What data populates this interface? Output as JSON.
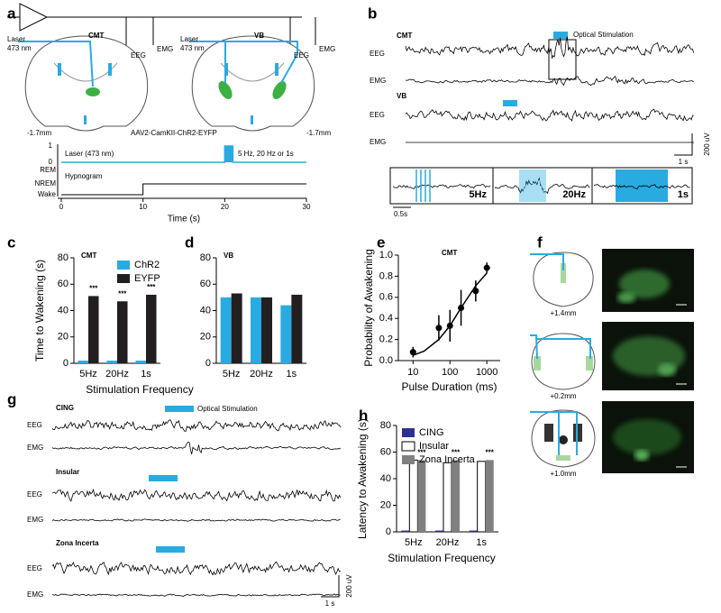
{
  "panel_labels": [
    "a",
    "b",
    "c",
    "d",
    "e",
    "f",
    "g",
    "h"
  ],
  "a": {
    "laser": "Laser",
    "wavelength": "473 nm",
    "laser_2": "Laser",
    "wavelength_2": "473 nm",
    "region_1": "CMT",
    "region_2": "VB",
    "eeg": "EEG",
    "emg": "EMG",
    "eeg_2": "EEG",
    "emg_2": "EMG",
    "depth_1": "-1.7mm",
    "depth_2": "-1.7mm",
    "virus": "AAV2-CamKII-ChR2-EYFP",
    "laser_levels": [
      1,
      0
    ],
    "laser_label": "Laser (473 nm)",
    "stim_label": "5 Hz, 20 Hz or 1s",
    "states": [
      "REM",
      "NREM",
      "Wake"
    ],
    "hypnogram_label": "Hypnogram",
    "time_ticks": [
      0,
      10,
      20,
      30
    ],
    "time_label": "Time (s)"
  },
  "b": {
    "region_1": "CMT",
    "stim_label": "Optical Stimulation",
    "eeg": "EEG",
    "emg": "EMG",
    "region_2": "VB",
    "eeg_2": "EEG",
    "emg_2": "EMG",
    "scale_v": "200 uV",
    "scale_t": "1 s",
    "inset": [
      "5Hz",
      "20Hz",
      "1s"
    ],
    "inset_scale": "0.5s"
  },
  "f": {
    "levels": [
      "+1.4mm",
      "+0.2mm",
      "+1.0mm"
    ]
  },
  "g": {
    "regions": [
      "CING",
      "Insular",
      "Zona Incerta"
    ],
    "stim_label": "Optical Stimulation",
    "eeg": [
      "EEG",
      "EEG",
      "EEG"
    ],
    "emg": [
      "EMG",
      "EMG",
      "EMG"
    ],
    "scale_v": "200 uV",
    "scale_t": "1 s"
  },
  "chart_data": [
    {
      "type": "bar",
      "title": "CMT",
      "ylabel": "Time to Wakening (s)",
      "xlabel": "Stimulation Frequency",
      "categories": [
        "5Hz",
        "20Hz",
        "1s"
      ],
      "series": [
        {
          "name": "ChR2",
          "color": "#29abe2",
          "values": [
            2,
            2,
            2
          ]
        },
        {
          "name": "EYFP",
          "color": "#231f20",
          "values": [
            51,
            47,
            52
          ]
        }
      ],
      "ylim": [
        0,
        80
      ],
      "yticks": [
        0,
        20,
        40,
        60,
        80
      ],
      "annotations": [
        "***",
        "***",
        "***"
      ],
      "legend": "upper right"
    },
    {
      "type": "bar",
      "title": "VB",
      "categories": [
        "5Hz",
        "20Hz",
        "1s"
      ],
      "series": [
        {
          "color": "#29abe2",
          "values": [
            50,
            50,
            44
          ]
        },
        {
          "color": "#231f20",
          "values": [
            53,
            50,
            52
          ]
        }
      ],
      "ylim": [
        0,
        80
      ],
      "yticks": [
        0,
        20,
        40,
        60,
        80
      ]
    },
    {
      "type": "line",
      "title": "CMT",
      "xlabel": "Pulse Duration (ms)",
      "ylabel": "Probability of Awakening",
      "x": [
        10,
        50,
        100,
        200,
        500,
        1000
      ],
      "values": [
        0.08,
        0.31,
        0.33,
        0.5,
        0.66,
        0.88
      ],
      "errors": [
        0.05,
        0.12,
        0.15,
        0.17,
        0.1,
        0.05
      ],
      "fit_x": [
        10,
        20,
        50,
        100,
        200,
        500,
        1000
      ],
      "fit_values": [
        0.05,
        0.09,
        0.2,
        0.33,
        0.5,
        0.71,
        0.83
      ],
      "color": "#000000",
      "xscale": "log",
      "xlim": [
        4,
        2300
      ],
      "xticks": [
        10,
        100,
        1000
      ],
      "ylim": [
        0,
        1
      ],
      "yticks": [
        {
          "value": 0,
          "label": "0.0"
        },
        0.2,
        0.4,
        0.6,
        0.8,
        {
          "value": 1,
          "label": "1.0"
        }
      ]
    },
    {
      "type": "bar",
      "ylabel": "Latency to Awakening (s)",
      "xlabel": "Stimulation Frequency",
      "categories": [
        "5Hz",
        "20Hz",
        "1s"
      ],
      "series": [
        {
          "name": "CING",
          "color": "#2e3192",
          "values": [
            1,
            1,
            1
          ]
        },
        {
          "name": "Insular",
          "color": "#ffffff",
          "values": [
            54,
            52,
            53
          ]
        },
        {
          "name": "Zona Incerta",
          "color": "#808080",
          "values": [
            54,
            54,
            54
          ]
        }
      ],
      "ylim": [
        0,
        80
      ],
      "yticks": [
        0,
        20,
        40,
        60,
        80
      ],
      "annotations": [
        "***",
        "***",
        "***"
      ],
      "legend": "upper left"
    }
  ]
}
